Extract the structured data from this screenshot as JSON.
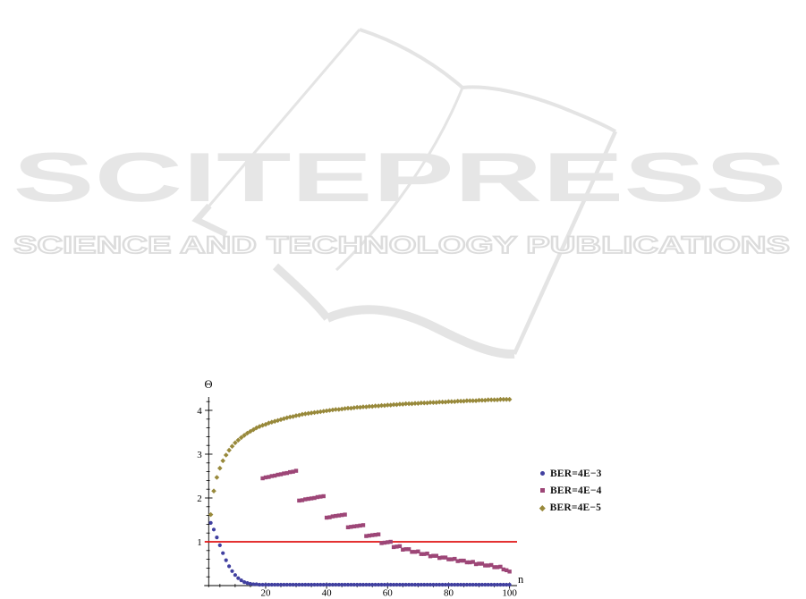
{
  "watermark": {
    "title": "SCITEPRESS",
    "subtitle": "SCIENCE AND TECHNOLOGY PUBLICATIONS",
    "title_color": "#e6e6e6",
    "subtitle_outline_color": "#dcdcdc",
    "book_line_color": "#e4e4e4"
  },
  "chart_data": {
    "type": "scatter",
    "title": "",
    "xlabel": "n",
    "ylabel": "Θ",
    "xlim": [
      0,
      102
    ],
    "ylim": [
      0,
      4.4
    ],
    "x_ticks": [
      20,
      40,
      60,
      80,
      100
    ],
    "x_minor_tick_step": 5,
    "y_ticks": [
      1,
      2,
      3,
      4
    ],
    "y_minor_tick_step": 0.2,
    "grid": false,
    "axis_color": "#000000",
    "legend_position": "right-outside",
    "reference_line": {
      "y": 1,
      "color": "#e11414"
    },
    "series": [
      {
        "name": "BER=4E−3",
        "marker": "circle",
        "color": "#4140a0",
        "points": [
          [
            2,
            1.43
          ],
          [
            3,
            1.28
          ],
          [
            4,
            1.1
          ],
          [
            5,
            0.92
          ],
          [
            6,
            0.74
          ],
          [
            7,
            0.58
          ],
          [
            8,
            0.44
          ],
          [
            9,
            0.33
          ],
          [
            10,
            0.24
          ],
          [
            11,
            0.17
          ],
          [
            12,
            0.12
          ],
          [
            13,
            0.08
          ],
          [
            14,
            0.06
          ],
          [
            15,
            0.04
          ],
          [
            16,
            0.03
          ],
          [
            17,
            0.03
          ],
          {
            "from": 18,
            "to": 100,
            "value": 0.02
          }
        ]
      },
      {
        "name": "BER=4E−4",
        "marker": "square",
        "color": "#9d4677",
        "points": [
          [
            19,
            2.45
          ],
          [
            20,
            2.47
          ],
          [
            21,
            2.48
          ],
          [
            22,
            2.5
          ],
          [
            23,
            2.51
          ],
          [
            24,
            2.53
          ],
          [
            25,
            2.54
          ],
          [
            26,
            2.56
          ],
          [
            27,
            2.57
          ],
          [
            28,
            2.59
          ],
          [
            29,
            2.6
          ],
          [
            30,
            2.62
          ],
          [
            31,
            1.94
          ],
          [
            32,
            1.95
          ],
          [
            33,
            1.97
          ],
          [
            34,
            1.98
          ],
          [
            35,
            1.99
          ],
          [
            36,
            2.0
          ],
          [
            37,
            2.02
          ],
          [
            38,
            2.03
          ],
          [
            39,
            2.04
          ],
          [
            40,
            1.55
          ],
          [
            41,
            1.56
          ],
          [
            42,
            1.58
          ],
          [
            43,
            1.59
          ],
          [
            44,
            1.6
          ],
          [
            45,
            1.61
          ],
          [
            46,
            1.62
          ],
          [
            47,
            1.33
          ],
          [
            48,
            1.34
          ],
          [
            49,
            1.35
          ],
          [
            50,
            1.36
          ],
          [
            51,
            1.37
          ],
          [
            52,
            1.38
          ],
          [
            53,
            1.13
          ],
          [
            54,
            1.14
          ],
          [
            55,
            1.15
          ],
          [
            56,
            1.16
          ],
          [
            57,
            1.17
          ],
          [
            58,
            0.97
          ],
          [
            59,
            0.98
          ],
          [
            60,
            0.99
          ],
          [
            61,
            1.0
          ],
          [
            62,
            0.88
          ],
          [
            63,
            0.89
          ],
          [
            64,
            0.9
          ],
          [
            65,
            0.82
          ],
          [
            66,
            0.83
          ],
          [
            67,
            0.83
          ],
          [
            68,
            0.77
          ],
          [
            69,
            0.77
          ],
          [
            70,
            0.78
          ],
          [
            71,
            0.72
          ],
          [
            72,
            0.72
          ],
          [
            73,
            0.73
          ],
          [
            74,
            0.67
          ],
          [
            75,
            0.68
          ],
          [
            76,
            0.68
          ],
          [
            77,
            0.63
          ],
          [
            78,
            0.64
          ],
          [
            79,
            0.64
          ],
          [
            80,
            0.6
          ],
          [
            81,
            0.6
          ],
          [
            82,
            0.61
          ],
          [
            83,
            0.56
          ],
          [
            84,
            0.57
          ],
          [
            85,
            0.57
          ],
          [
            86,
            0.53
          ],
          [
            87,
            0.53
          ],
          [
            88,
            0.54
          ],
          [
            89,
            0.49
          ],
          [
            90,
            0.5
          ],
          [
            91,
            0.5
          ],
          [
            92,
            0.46
          ],
          [
            93,
            0.46
          ],
          [
            94,
            0.47
          ],
          [
            95,
            0.42
          ],
          [
            96,
            0.42
          ],
          [
            97,
            0.43
          ],
          [
            98,
            0.37
          ],
          [
            99,
            0.35
          ],
          [
            100,
            0.32
          ]
        ]
      },
      {
        "name": "BER=4E−5",
        "marker": "diamond",
        "color": "#98893b",
        "points": [
          [
            2,
            1.62
          ],
          [
            3,
            2.16
          ],
          [
            4,
            2.47
          ],
          [
            5,
            2.68
          ],
          [
            6,
            2.85
          ],
          [
            7,
            2.98
          ],
          [
            8,
            3.09
          ],
          [
            9,
            3.18
          ],
          [
            10,
            3.26
          ],
          [
            11,
            3.32
          ],
          [
            12,
            3.38
          ],
          [
            13,
            3.43
          ],
          [
            14,
            3.48
          ],
          [
            15,
            3.52
          ],
          [
            16,
            3.56
          ],
          [
            17,
            3.6
          ],
          [
            18,
            3.63
          ],
          [
            19,
            3.66
          ],
          [
            20,
            3.68
          ],
          [
            21,
            3.71
          ],
          [
            22,
            3.73
          ],
          [
            23,
            3.75
          ],
          [
            24,
            3.77
          ],
          [
            25,
            3.79
          ],
          [
            26,
            3.81
          ],
          [
            27,
            3.83
          ],
          [
            28,
            3.85
          ],
          [
            29,
            3.86
          ],
          [
            30,
            3.88
          ],
          [
            31,
            3.89
          ],
          [
            32,
            3.91
          ],
          [
            33,
            3.92
          ],
          [
            34,
            3.93
          ],
          [
            35,
            3.94
          ],
          [
            36,
            3.95
          ],
          [
            37,
            3.96
          ],
          [
            38,
            3.97
          ],
          [
            39,
            3.98
          ],
          [
            40,
            3.99
          ],
          [
            41,
            4.0
          ],
          [
            42,
            4.01
          ],
          [
            43,
            4.02
          ],
          [
            44,
            4.02
          ],
          [
            45,
            4.03
          ],
          [
            46,
            4.04
          ],
          [
            47,
            4.05
          ],
          [
            48,
            4.05
          ],
          [
            49,
            4.06
          ],
          [
            50,
            4.07
          ],
          [
            51,
            4.07
          ],
          [
            52,
            4.08
          ],
          [
            53,
            4.08
          ],
          [
            54,
            4.09
          ],
          [
            55,
            4.09
          ],
          [
            56,
            4.1
          ],
          [
            57,
            4.1
          ],
          [
            58,
            4.11
          ],
          [
            59,
            4.11
          ],
          [
            60,
            4.12
          ],
          [
            61,
            4.12
          ],
          [
            62,
            4.13
          ],
          [
            63,
            4.13
          ],
          [
            64,
            4.14
          ],
          [
            65,
            4.14
          ],
          [
            66,
            4.15
          ],
          [
            67,
            4.15
          ],
          [
            68,
            4.15
          ],
          [
            69,
            4.16
          ],
          [
            70,
            4.16
          ],
          [
            71,
            4.17
          ],
          [
            72,
            4.17
          ],
          [
            73,
            4.17
          ],
          [
            74,
            4.18
          ],
          [
            75,
            4.18
          ],
          [
            76,
            4.18
          ],
          [
            77,
            4.19
          ],
          [
            78,
            4.19
          ],
          [
            79,
            4.19
          ],
          [
            80,
            4.2
          ],
          [
            81,
            4.2
          ],
          [
            82,
            4.2
          ],
          [
            83,
            4.21
          ],
          [
            84,
            4.21
          ],
          [
            85,
            4.21
          ],
          [
            86,
            4.22
          ],
          [
            87,
            4.22
          ],
          [
            88,
            4.22
          ],
          [
            89,
            4.22
          ],
          [
            90,
            4.23
          ],
          [
            91,
            4.23
          ],
          [
            92,
            4.23
          ],
          [
            93,
            4.24
          ],
          [
            94,
            4.24
          ],
          [
            95,
            4.24
          ],
          [
            96,
            4.24
          ],
          [
            97,
            4.25
          ],
          [
            98,
            4.25
          ],
          [
            99,
            4.25
          ],
          [
            100,
            4.25
          ]
        ]
      }
    ]
  }
}
